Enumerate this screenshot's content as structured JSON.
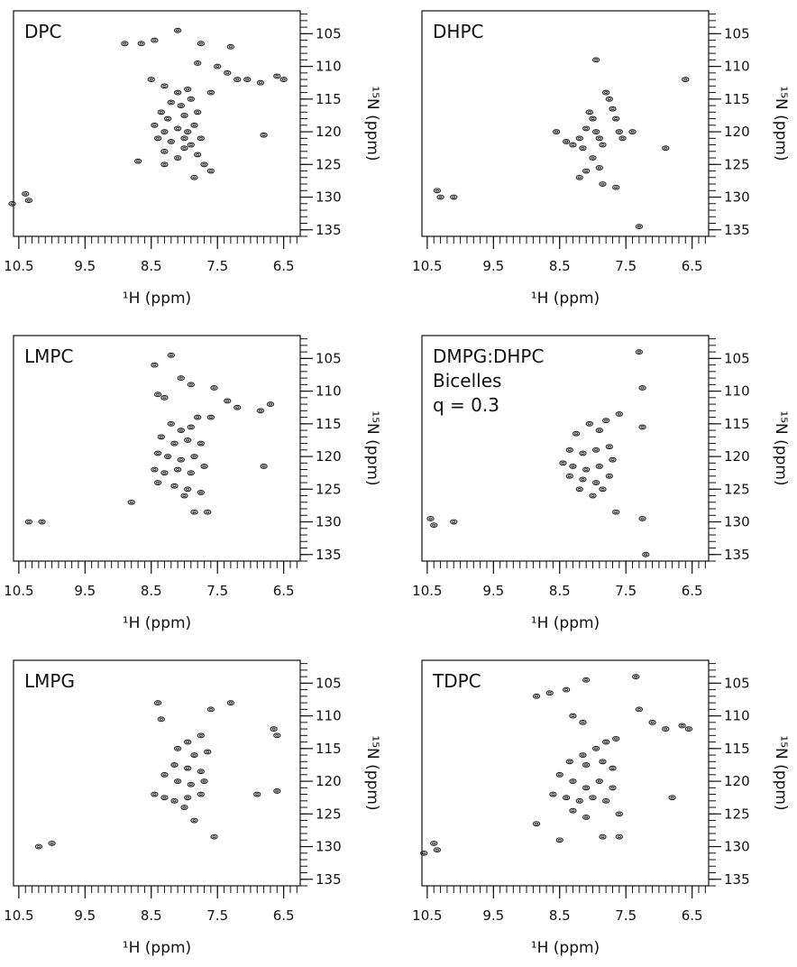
{
  "chart_data": [
    {
      "type": "scatter",
      "title": [
        "DPC"
      ],
      "xlabel": "¹H (ppm)",
      "ylabel": "¹⁵N (ppm)",
      "xlim": [
        10.58,
        6.25
      ],
      "ylim": [
        101.5,
        136
      ],
      "xticks": [
        10.5,
        9.5,
        8.5,
        7.5,
        6.5
      ],
      "yticks": [
        105,
        110,
        115,
        120,
        125,
        130,
        135
      ],
      "xminor": 0.1,
      "yminor": 1,
      "color": "#222222",
      "x": [
        10.6,
        10.4,
        10.35,
        8.9,
        8.65,
        8.45,
        8.1,
        7.75,
        7.3,
        7.8,
        7.5,
        7.35,
        7.2,
        7.05,
        6.85,
        6.6,
        6.5,
        8.5,
        8.3,
        8.1,
        7.95,
        8.2,
        8.05,
        7.9,
        8.35,
        8.25,
        8.0,
        7.8,
        8.45,
        8.3,
        8.1,
        7.95,
        7.85,
        8.4,
        8.2,
        8.0,
        7.75,
        7.9,
        8.3,
        8.1,
        8.0,
        7.8,
        8.3,
        7.7,
        7.6,
        7.85,
        8.7,
        6.8,
        7.6
      ],
      "y": [
        131,
        129.5,
        130.5,
        106.5,
        106.5,
        106,
        104.5,
        106.5,
        107,
        109.5,
        110,
        111,
        112,
        112,
        112.5,
        111.5,
        112,
        112,
        113,
        114,
        113.5,
        115.5,
        116,
        115,
        117,
        118,
        117.5,
        117,
        119,
        120,
        119.5,
        120,
        119,
        121,
        121.5,
        121,
        121,
        122,
        123,
        124,
        122.5,
        123.5,
        125,
        125,
        126,
        127,
        124.5,
        120.5,
        114
      ]
    },
    {
      "type": "scatter",
      "title": [
        "DHPC"
      ],
      "xlabel": "¹H (ppm)",
      "ylabel": "¹⁵N (ppm)",
      "xlim": [
        10.58,
        6.25
      ],
      "ylim": [
        101.5,
        136
      ],
      "xticks": [
        10.5,
        9.5,
        8.5,
        7.5,
        6.5
      ],
      "yticks": [
        105,
        110,
        115,
        120,
        125,
        130,
        135
      ],
      "xminor": 0.1,
      "yminor": 1,
      "color": "#222222",
      "x": [
        10.35,
        10.3,
        10.1,
        8.55,
        8.4,
        8.3,
        8.2,
        8.15,
        8.1,
        8.05,
        8.0,
        7.95,
        7.9,
        7.85,
        7.8,
        7.75,
        7.7,
        7.65,
        7.6,
        7.55,
        8.0,
        7.9,
        8.1,
        7.85,
        7.65,
        7.4,
        6.9,
        6.6,
        7.3,
        8.2,
        7.95
      ],
      "y": [
        129,
        130,
        130,
        120,
        121.5,
        122,
        121,
        122.5,
        119.5,
        117,
        118,
        120,
        121,
        122,
        114,
        115,
        116.5,
        118,
        120,
        121,
        124,
        125.5,
        126,
        128,
        128.5,
        120,
        122.5,
        112,
        134.5,
        127,
        109
      ]
    },
    {
      "type": "scatter",
      "title": [
        "LMPC"
      ],
      "xlabel": "¹H (ppm)",
      "ylabel": "¹⁵N (ppm)",
      "xlim": [
        10.58,
        6.25
      ],
      "ylim": [
        101.5,
        136
      ],
      "xticks": [
        10.5,
        9.5,
        8.5,
        7.5,
        6.5
      ],
      "yticks": [
        105,
        110,
        115,
        120,
        125,
        130,
        135
      ],
      "xminor": 0.1,
      "yminor": 1,
      "color": "#222222",
      "x": [
        10.35,
        10.15,
        8.8,
        8.45,
        8.2,
        8.4,
        8.3,
        8.05,
        7.9,
        7.55,
        7.35,
        7.2,
        6.85,
        6.7,
        7.8,
        7.6,
        8.2,
        8.05,
        7.9,
        8.35,
        8.15,
        7.95,
        7.75,
        8.4,
        8.25,
        8.05,
        7.85,
        8.45,
        8.3,
        8.1,
        7.9,
        7.7,
        8.4,
        8.15,
        7.95,
        8.0,
        7.75,
        7.85,
        7.65,
        6.8
      ],
      "y": [
        130,
        130,
        127,
        106,
        104.5,
        110.5,
        111,
        108,
        109,
        109.5,
        111.5,
        112.5,
        113,
        112,
        114,
        114,
        115,
        116,
        115.5,
        117,
        118,
        117.5,
        118,
        119.5,
        120,
        120.5,
        120,
        122,
        122.5,
        122,
        122.5,
        121.5,
        124,
        124.5,
        125,
        126,
        125.5,
        128.5,
        128.5,
        121.5
      ]
    },
    {
      "type": "scatter",
      "title": [
        "DMPG:DHPC",
        "Bicelles",
        "q = 0.3"
      ],
      "xlabel": "¹H (ppm)",
      "ylabel": "¹⁵N (ppm)",
      "xlim": [
        10.58,
        6.25
      ],
      "ylim": [
        101.5,
        136
      ],
      "xticks": [
        10.5,
        9.5,
        8.5,
        7.5,
        6.5
      ],
      "yticks": [
        105,
        110,
        115,
        120,
        125,
        130,
        135
      ],
      "xminor": 0.1,
      "yminor": 1,
      "color": "#222222",
      "x": [
        10.45,
        10.4,
        10.1,
        8.25,
        8.05,
        7.8,
        7.6,
        7.9,
        8.35,
        8.15,
        7.95,
        7.75,
        8.45,
        8.3,
        8.1,
        7.9,
        7.7,
        8.35,
        8.15,
        7.95,
        7.75,
        8.2,
        8.0,
        7.85,
        7.65,
        7.25,
        7.25,
        7.2,
        7.25,
        7.3
      ],
      "y": [
        129.5,
        130.5,
        130,
        116.5,
        115,
        114.5,
        113.5,
        116,
        119,
        119.5,
        119,
        118.5,
        121,
        121.5,
        122,
        121.5,
        120.5,
        123,
        123.5,
        124,
        123,
        125,
        126,
        125,
        128.5,
        115.5,
        129.5,
        135,
        109.5,
        104
      ]
    },
    {
      "type": "scatter",
      "title": [
        "LMPG"
      ],
      "xlabel": "¹H (ppm)",
      "ylabel": "¹⁵N (ppm)",
      "xlim": [
        10.58,
        6.25
      ],
      "ylim": [
        101.5,
        136
      ],
      "xticks": [
        10.5,
        9.5,
        8.5,
        7.5,
        6.5
      ],
      "yticks": [
        105,
        110,
        115,
        120,
        125,
        130,
        135
      ],
      "xminor": 0.1,
      "yminor": 1,
      "color": "#222222",
      "x": [
        10.2,
        10.0,
        8.4,
        8.35,
        7.6,
        7.3,
        6.65,
        6.6,
        7.75,
        7.95,
        8.1,
        7.85,
        7.65,
        8.15,
        7.95,
        7.75,
        8.3,
        8.1,
        7.9,
        7.7,
        8.45,
        8.3,
        8.15,
        7.95,
        7.75,
        8.0,
        7.85,
        7.55,
        6.9,
        6.6
      ],
      "y": [
        130,
        129.5,
        108,
        110.5,
        109,
        108,
        112,
        113,
        113,
        114,
        115,
        116,
        115.5,
        117.5,
        118,
        118.5,
        119,
        120,
        120.5,
        120,
        122,
        122.5,
        123,
        122.5,
        122,
        124,
        126,
        128.5,
        122,
        121.5
      ]
    },
    {
      "type": "scatter",
      "title": [
        "TDPC"
      ],
      "xlabel": "¹H (ppm)",
      "ylabel": "¹⁵N (ppm)",
      "xlim": [
        10.58,
        6.25
      ],
      "ylim": [
        101.5,
        136
      ],
      "xticks": [
        10.5,
        9.5,
        8.5,
        7.5,
        6.5
      ],
      "yticks": [
        105,
        110,
        115,
        120,
        125,
        130,
        135
      ],
      "xminor": 0.1,
      "yminor": 1,
      "color": "#222222",
      "x": [
        10.55,
        10.35,
        10.4,
        8.85,
        8.85,
        8.65,
        8.4,
        8.1,
        7.35,
        8.3,
        8.15,
        7.3,
        7.1,
        6.9,
        6.65,
        6.55,
        7.8,
        7.65,
        7.95,
        8.15,
        8.35,
        8.1,
        7.85,
        7.7,
        8.5,
        8.3,
        8.1,
        7.9,
        7.7,
        8.6,
        8.4,
        8.2,
        8.0,
        7.8,
        8.3,
        8.1,
        7.6,
        7.85,
        7.6,
        6.8,
        8.5
      ],
      "y": [
        131,
        130.5,
        129.5,
        126.5,
        107,
        106.5,
        106,
        104.5,
        104,
        110,
        111,
        109,
        111,
        112,
        111.5,
        112,
        114,
        113.5,
        115,
        116,
        117,
        117.5,
        117,
        118,
        119,
        120,
        121,
        120,
        121,
        122,
        122.5,
        123,
        122.5,
        123,
        124.5,
        125.5,
        125,
        128.5,
        128.5,
        122.5,
        129
      ]
    }
  ]
}
